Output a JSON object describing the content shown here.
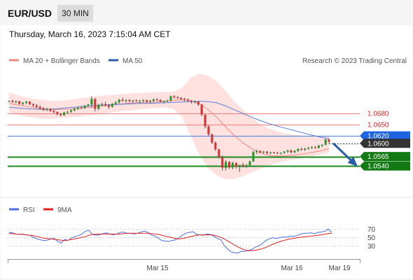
{
  "header": {
    "symbol": "EUR/USD",
    "timeframe": "30 MIN",
    "datetime": "Thursday, March 16, 2023 7:15:04 AM CET"
  },
  "legend": {
    "ma20": "MA 20 + Bollinger Bands",
    "ma50": "MA 50",
    "credit": "Research © 2023 Trading Central",
    "rsi": "RSI",
    "ma9": "9MA"
  },
  "colors": {
    "up": "#2b9a2b",
    "down": "#d23a3a",
    "bollinger": "#ffc9c6",
    "ma20": "#f08a84",
    "ma50": "#5b7fd4",
    "resistance": "#ee7a7a",
    "support": "#1a8a1a",
    "pivot": "#4a7fe0",
    "rsi": "#4a6fe0",
    "ma9": "#e02020"
  },
  "chart_data": [
    {
      "type": "candlestick",
      "price_range": [
        1.0475,
        1.0795
      ],
      "x_ticks": [
        "Mar 15",
        "Mar 16",
        "Mar 19"
      ],
      "levels": [
        {
          "label": "1.0680",
          "value": 1.068,
          "kind": "resistance"
        },
        {
          "label": "1.0650",
          "value": 1.065,
          "kind": "resistance"
        },
        {
          "label": "1.0620",
          "value": 1.062,
          "kind": "pivot"
        },
        {
          "label": "1.0600",
          "value": 1.06,
          "kind": "last"
        },
        {
          "label": "1.0565",
          "value": 1.0565,
          "kind": "support"
        },
        {
          "label": "1.0540",
          "value": 1.054,
          "kind": "support"
        }
      ],
      "forecast": {
        "from": 1.0604,
        "to": 1.054
      },
      "candles": [
        [
          1.0712,
          1.0714,
          1.0709,
          1.0713
        ],
        [
          1.0713,
          1.0716,
          1.0708,
          1.071
        ],
        [
          1.071,
          1.0714,
          1.0706,
          1.0712
        ],
        [
          1.0712,
          1.0713,
          1.0703,
          1.0705
        ],
        [
          1.0705,
          1.071,
          1.0701,
          1.0708
        ],
        [
          1.0708,
          1.0713,
          1.0704,
          1.0711
        ],
        [
          1.0711,
          1.0712,
          1.0702,
          1.0704
        ],
        [
          1.0704,
          1.0707,
          1.0697,
          1.0701
        ],
        [
          1.0701,
          1.0705,
          1.0694,
          1.0697
        ],
        [
          1.0697,
          1.0701,
          1.069,
          1.0693
        ],
        [
          1.0693,
          1.0697,
          1.0686,
          1.0689
        ],
        [
          1.0689,
          1.0694,
          1.0686,
          1.0692
        ],
        [
          1.0692,
          1.0693,
          1.0684,
          1.0686
        ],
        [
          1.0686,
          1.069,
          1.068,
          1.0683
        ],
        [
          1.0683,
          1.0685,
          1.0674,
          1.0678
        ],
        [
          1.0678,
          1.068,
          1.0672,
          1.0675
        ],
        [
          1.0675,
          1.0684,
          1.0673,
          1.0682
        ],
        [
          1.0682,
          1.0686,
          1.0678,
          1.0684
        ],
        [
          1.0684,
          1.069,
          1.0681,
          1.0688
        ],
        [
          1.0688,
          1.0694,
          1.0685,
          1.0692
        ],
        [
          1.0692,
          1.0697,
          1.0689,
          1.0695
        ],
        [
          1.0695,
          1.0699,
          1.0691,
          1.0694
        ],
        [
          1.0694,
          1.0702,
          1.0692,
          1.07
        ],
        [
          1.07,
          1.0705,
          1.0697,
          1.0703
        ],
        [
          1.0703,
          1.0725,
          1.0695,
          1.0718
        ],
        [
          1.0718,
          1.072,
          1.0685,
          1.0692
        ],
        [
          1.0692,
          1.0705,
          1.0688,
          1.0702
        ],
        [
          1.0702,
          1.0708,
          1.0699,
          1.0704
        ],
        [
          1.0704,
          1.0711,
          1.0698,
          1.0701
        ],
        [
          1.0701,
          1.0704,
          1.0692,
          1.0697
        ],
        [
          1.0697,
          1.0707,
          1.0695,
          1.0705
        ],
        [
          1.0705,
          1.0712,
          1.0701,
          1.0709
        ],
        [
          1.0709,
          1.0718,
          1.0706,
          1.0716
        ],
        [
          1.0716,
          1.0721,
          1.0711,
          1.0713
        ],
        [
          1.0713,
          1.0717,
          1.0708,
          1.0715
        ],
        [
          1.0715,
          1.0718,
          1.0709,
          1.0712
        ],
        [
          1.0712,
          1.0716,
          1.0708,
          1.0714
        ],
        [
          1.0714,
          1.0717,
          1.071,
          1.0712
        ],
        [
          1.0712,
          1.0716,
          1.0707,
          1.0713
        ],
        [
          1.0713,
          1.0717,
          1.0709,
          1.0715
        ],
        [
          1.0715,
          1.0716,
          1.0708,
          1.0711
        ],
        [
          1.0711,
          1.0716,
          1.0708,
          1.0713
        ],
        [
          1.0713,
          1.0719,
          1.071,
          1.0717
        ],
        [
          1.0717,
          1.072,
          1.0712,
          1.0715
        ],
        [
          1.0715,
          1.0718,
          1.0709,
          1.0711
        ],
        [
          1.0711,
          1.0714,
          1.0706,
          1.0712
        ],
        [
          1.0712,
          1.0716,
          1.0709,
          1.0714
        ],
        [
          1.0714,
          1.0727,
          1.0711,
          1.0725
        ],
        [
          1.0725,
          1.0728,
          1.0719,
          1.0722
        ],
        [
          1.0722,
          1.0726,
          1.0718,
          1.0721
        ],
        [
          1.0721,
          1.0723,
          1.0715,
          1.0718
        ],
        [
          1.0718,
          1.0721,
          1.0712,
          1.0716
        ],
        [
          1.0716,
          1.0719,
          1.071,
          1.0713
        ],
        [
          1.0713,
          1.0715,
          1.0706,
          1.071
        ],
        [
          1.071,
          1.0714,
          1.0706,
          1.0711
        ],
        [
          1.0711,
          1.0712,
          1.07,
          1.0703
        ],
        [
          1.0703,
          1.0705,
          1.0672,
          1.0676
        ],
        [
          1.0676,
          1.0678,
          1.064,
          1.0645
        ],
        [
          1.0645,
          1.0648,
          1.062,
          1.0624
        ],
        [
          1.0624,
          1.0626,
          1.0598,
          1.0602
        ],
        [
          1.0602,
          1.0605,
          1.058,
          1.0584
        ],
        [
          1.0584,
          1.0586,
          1.056,
          1.0563
        ],
        [
          1.0563,
          1.0568,
          1.0528,
          1.0535
        ],
        [
          1.0535,
          1.0556,
          1.0528,
          1.0551
        ],
        [
          1.0551,
          1.0553,
          1.0532,
          1.0536
        ],
        [
          1.0536,
          1.0551,
          1.0531,
          1.0548
        ],
        [
          1.0548,
          1.055,
          1.0533,
          1.0538
        ],
        [
          1.0538,
          1.0541,
          1.0524,
          1.0543
        ],
        [
          1.0543,
          1.0548,
          1.0536,
          1.0539
        ],
        [
          1.0539,
          1.0545,
          1.0535,
          1.0542
        ],
        [
          1.0542,
          1.0554,
          1.054,
          1.0552
        ],
        [
          1.0552,
          1.058,
          1.055,
          1.0577
        ],
        [
          1.0577,
          1.0583,
          1.0572,
          1.058
        ],
        [
          1.058,
          1.0582,
          1.0574,
          1.0576
        ],
        [
          1.0576,
          1.058,
          1.0572,
          1.0578
        ],
        [
          1.0578,
          1.058,
          1.0571,
          1.0574
        ],
        [
          1.0574,
          1.0578,
          1.0571,
          1.0576
        ],
        [
          1.0576,
          1.0578,
          1.0572,
          1.0575
        ],
        [
          1.0575,
          1.0577,
          1.0571,
          1.0573
        ],
        [
          1.0573,
          1.0576,
          1.057,
          1.0575
        ],
        [
          1.0575,
          1.058,
          1.0572,
          1.0578
        ],
        [
          1.0578,
          1.0583,
          1.0574,
          1.0581
        ],
        [
          1.0581,
          1.0584,
          1.0573,
          1.0576
        ],
        [
          1.0576,
          1.0582,
          1.0574,
          1.058
        ],
        [
          1.058,
          1.0587,
          1.0577,
          1.0585
        ],
        [
          1.0585,
          1.0589,
          1.058,
          1.0583
        ],
        [
          1.0583,
          1.0588,
          1.058,
          1.0586
        ],
        [
          1.0586,
          1.0591,
          1.0583,
          1.0588
        ],
        [
          1.0588,
          1.0592,
          1.0585,
          1.059
        ],
        [
          1.059,
          1.0593,
          1.0586,
          1.0588
        ],
        [
          1.0588,
          1.0596,
          1.0586,
          1.0594
        ],
        [
          1.0594,
          1.0598,
          1.059,
          1.0596
        ],
        [
          1.0596,
          1.0612,
          1.0595,
          1.061
        ],
        [
          1.061,
          1.0613,
          1.06,
          1.0604
        ]
      ],
      "ma20": [
        1.0706,
        1.0702,
        1.0698,
        1.0695,
        1.0692,
        1.069,
        1.069,
        1.0691,
        1.0693,
        1.0695,
        1.0697,
        1.07,
        1.0703,
        1.0705,
        1.0707,
        1.0708,
        1.0709,
        1.071,
        1.0712,
        1.0714,
        1.0716,
        1.0714,
        1.0706,
        1.069,
        1.067,
        1.0645,
        1.0622,
        1.0602,
        1.0587,
        1.0575,
        1.0568,
        1.0566,
        1.0567,
        1.0569,
        1.0572,
        1.0576,
        1.058,
        1.0586
      ],
      "bb_upper": [
        1.0735,
        1.0728,
        1.0722,
        1.0718,
        1.0715,
        1.0713,
        1.0714,
        1.0716,
        1.0719,
        1.0722,
        1.0725,
        1.0727,
        1.0729,
        1.0731,
        1.0733,
        1.0734,
        1.0735,
        1.0736,
        1.0737,
        1.0737,
        1.0748,
        1.0775,
        1.0785,
        1.078,
        1.0765,
        1.074,
        1.0712,
        1.069,
        1.067,
        1.0652,
        1.064,
        1.0632,
        1.0626,
        1.0623,
        1.0621,
        1.062,
        1.0619,
        1.0619
      ],
      "bb_lower": [
        1.0682,
        1.0676,
        1.0671,
        1.0668,
        1.0666,
        1.0666,
        1.0667,
        1.0669,
        1.0671,
        1.0674,
        1.0677,
        1.068,
        1.0683,
        1.0686,
        1.0688,
        1.069,
        1.0692,
        1.0694,
        1.0695,
        1.0691,
        1.067,
        1.062,
        1.057,
        1.0535,
        1.0515,
        1.0505,
        1.0505,
        1.0512,
        1.0522,
        1.0532,
        1.0541,
        1.0548,
        1.0553,
        1.0557,
        1.0561,
        1.0565,
        1.057,
        1.0575
      ],
      "ma50": [
        1.0696,
        1.0694,
        1.0692,
        1.0691,
        1.069,
        1.0691,
        1.0693,
        1.0695,
        1.0697,
        1.0699,
        1.0701,
        1.0702,
        1.0703,
        1.0704,
        1.0705,
        1.0706,
        1.0706,
        1.0707,
        1.0708,
        1.0709,
        1.071,
        1.0711,
        1.0712,
        1.0711,
        1.0708,
        1.07,
        1.069,
        1.068,
        1.067,
        1.0661,
        1.0653,
        1.0646,
        1.064,
        1.0634,
        1.0628,
        1.0622,
        1.0617,
        1.0612
      ]
    },
    {
      "type": "line",
      "ylim": [
        0,
        100
      ],
      "y_ticks": [
        70,
        50,
        30
      ],
      "series": [
        {
          "name": "RSI",
          "values": [
            62,
            61,
            58,
            57,
            58,
            56,
            55,
            50,
            46,
            44,
            42,
            43,
            46,
            47,
            40,
            36,
            45,
            42,
            48,
            52,
            54,
            58,
            65,
            67,
            57,
            55,
            56,
            59,
            61,
            58,
            56,
            58,
            62,
            63,
            60,
            60,
            58,
            60,
            63,
            65,
            62,
            56,
            53,
            48,
            42,
            41,
            40,
            42,
            44,
            49,
            55,
            60,
            62,
            64,
            57,
            56,
            55,
            58,
            57,
            53,
            47,
            44,
            30,
            21,
            14,
            12,
            11,
            16,
            15,
            18,
            20,
            26,
            29,
            35,
            42,
            46,
            49,
            47,
            49,
            51,
            50,
            53,
            52,
            54,
            58,
            60,
            60,
            61,
            59,
            62,
            63,
            65,
            70,
            62
          ]
        },
        {
          "name": "9MA",
          "values": [
            60,
            59,
            58,
            57,
            57,
            56,
            55,
            54,
            52,
            50,
            48,
            47,
            46,
            45,
            44,
            43,
            42,
            43,
            45,
            46,
            48,
            50,
            52,
            55,
            57,
            58,
            58,
            58,
            58,
            58,
            58,
            58,
            58,
            59,
            60,
            60,
            60,
            60,
            60,
            60,
            60,
            59,
            58,
            57,
            55,
            53,
            51,
            49,
            47,
            46,
            47,
            49,
            51,
            53,
            55,
            56,
            56,
            56,
            56,
            55,
            53,
            50,
            46,
            41,
            36,
            31,
            26,
            22,
            19,
            17,
            17,
            18,
            20,
            22,
            25,
            29,
            33,
            36,
            39,
            42,
            44,
            46,
            47,
            49,
            50,
            51,
            52,
            53,
            54,
            55,
            56,
            58,
            59,
            60
          ]
        }
      ]
    }
  ]
}
